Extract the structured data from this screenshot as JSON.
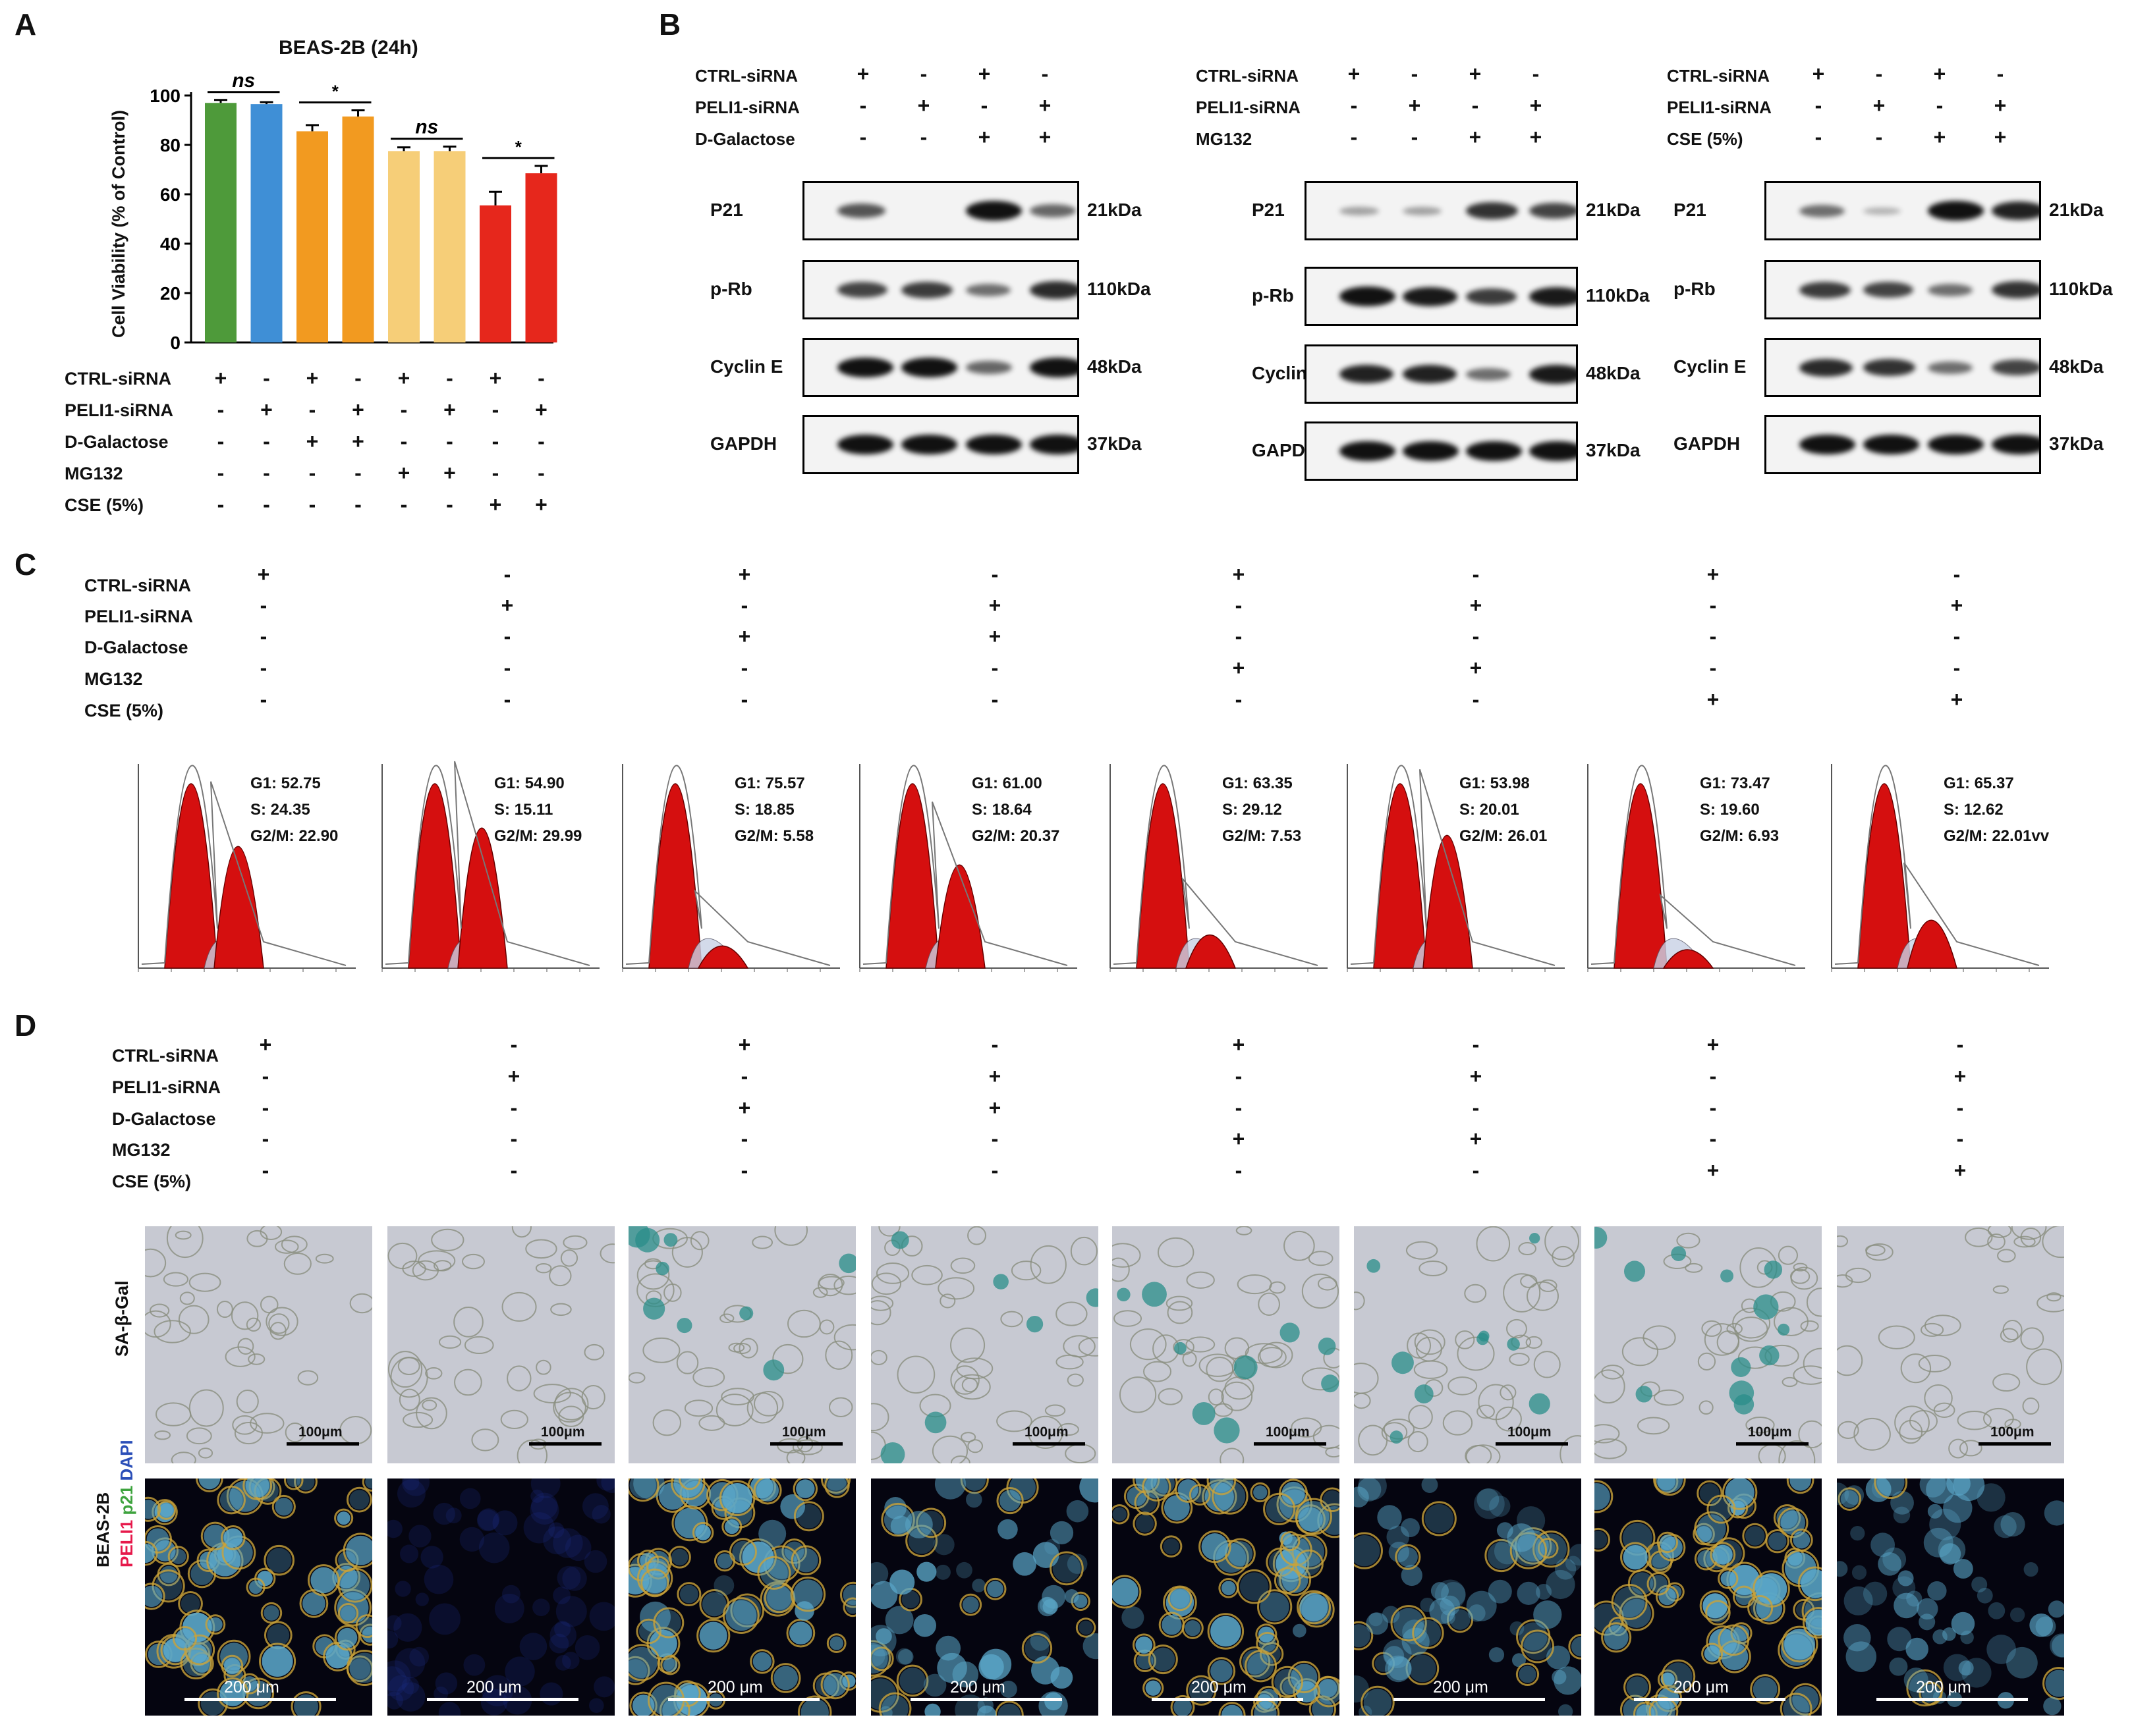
{
  "panel_labels": {
    "A": "A",
    "B": "B",
    "C": "C",
    "D": "D"
  },
  "treatment_rows": [
    "CTRL-siRNA",
    "PELI1-siRNA",
    "D-Galactose",
    "MG132",
    "CSE (5%)"
  ],
  "panelA": {
    "pattern": [
      [
        "+",
        "-",
        "+",
        "-",
        "+",
        "-",
        "+",
        "-"
      ],
      [
        "-",
        "+",
        "-",
        "+",
        "-",
        "+",
        "-",
        "+"
      ],
      [
        "-",
        "-",
        "+",
        "+",
        "-",
        "-",
        "-",
        "-"
      ],
      [
        "-",
        "-",
        "-",
        "-",
        "+",
        "+",
        "-",
        "-"
      ],
      [
        "-",
        "-",
        "-",
        "-",
        "-",
        "-",
        "+",
        "+"
      ]
    ],
    "significance": [
      "ns",
      "*",
      "ns",
      "*"
    ]
  },
  "chart_data": {
    "type": "bar",
    "title": "BEAS-2B (24h)",
    "ylabel": "Cell Viability (% of Control)",
    "ylim": [
      0,
      100
    ],
    "yticks": [
      "0",
      "20",
      "40",
      "60",
      "80",
      "100"
    ],
    "values": [
      97,
      96.5,
      85.5,
      91.5,
      77.5,
      77.5,
      55.5,
      68.5
    ],
    "errors": [
      1.2,
      0.8,
      2.5,
      2.5,
      1.5,
      1.8,
      5.5,
      3
    ],
    "colors": [
      "#4e9a3a",
      "#3f8fd6",
      "#f29a20",
      "#f29a20",
      "#f6ce78",
      "#f6ce78",
      "#e6271c",
      "#e6271c"
    ],
    "legend": "none",
    "grid": false
  },
  "panelB": {
    "blots": [
      {
        "rows": [
          "CTRL-siRNA",
          "PELI1-siRNA",
          "D-Galactose"
        ],
        "pattern": [
          [
            "+",
            "-",
            "+",
            "-"
          ],
          [
            "-",
            "+",
            "-",
            "+"
          ],
          [
            "-",
            "-",
            "+",
            "+"
          ]
        ],
        "bands": [
          [
            0.6,
            0,
            1.0,
            0.5
          ],
          [
            0.7,
            0.75,
            0.45,
            0.85
          ],
          [
            1.0,
            1.0,
            0.5,
            1.0
          ],
          [
            1,
            1,
            1,
            1
          ]
        ]
      },
      {
        "rows": [
          "CTRL-siRNA",
          "PELI1-siRNA",
          "MG132"
        ],
        "pattern": [
          [
            "+",
            "-",
            "+",
            "-"
          ],
          [
            "-",
            "+",
            "-",
            "+"
          ],
          [
            "-",
            "-",
            "+",
            "+"
          ]
        ],
        "bands": [
          [
            0.15,
            0.15,
            0.8,
            0.7
          ],
          [
            1.0,
            0.95,
            0.75,
            0.95
          ],
          [
            0.9,
            0.9,
            0.45,
            0.95
          ],
          [
            1,
            1,
            1,
            1
          ]
        ]
      },
      {
        "rows": [
          "CTRL-siRNA",
          "PELI1-siRNA",
          "CSE (5%)"
        ],
        "pattern": [
          [
            "+",
            "-",
            "+",
            "-"
          ],
          [
            "-",
            "+",
            "-",
            "+"
          ],
          [
            "-",
            "-",
            "+",
            "+"
          ]
        ],
        "bands": [
          [
            0.45,
            0.05,
            1.0,
            0.9
          ],
          [
            0.75,
            0.7,
            0.45,
            0.8
          ],
          [
            0.85,
            0.8,
            0.45,
            0.7
          ],
          [
            1,
            1,
            1,
            1
          ]
        ]
      }
    ],
    "proteins": [
      "P21",
      "p-Rb",
      "Cyclin E",
      "GAPDH"
    ],
    "kda": [
      "21kDa",
      "110kDa",
      "48kDa",
      "37kDa"
    ]
  },
  "panelC": {
    "pattern": [
      [
        "+",
        "-",
        "+",
        "-",
        "+",
        "-",
        "+",
        "-"
      ],
      [
        "-",
        "+",
        "-",
        "+",
        "-",
        "+",
        "-",
        "+"
      ],
      [
        "-",
        "-",
        "+",
        "+",
        "-",
        "-",
        "-",
        "-"
      ],
      [
        "-",
        "-",
        "-",
        "-",
        "+",
        "+",
        "-",
        "-"
      ],
      [
        "-",
        "-",
        "-",
        "-",
        "-",
        "-",
        "+",
        "+"
      ]
    ],
    "histograms": [
      {
        "g1": "G1: 52.75",
        "s": "S: 24.35",
        "g2m": "G2/M: 22.90",
        "h2": 0.33
      },
      {
        "g1": "G1: 54.90",
        "s": "S: 15.11",
        "g2m": "G2/M: 29.99",
        "h2": 0.38
      },
      {
        "g1": "G1: 75.57",
        "s": "S: 18.85",
        "g2m": "G2/M: 5.58",
        "h2": 0.06
      },
      {
        "g1": "G1: 61.00",
        "s": "S: 18.64",
        "g2m": "G2/M: 20.37",
        "h2": 0.28
      },
      {
        "g1": "G1: 63.35",
        "s": "S: 29.12",
        "g2m": "G2/M: 7.53",
        "h2": 0.09
      },
      {
        "g1": "G1: 53.98",
        "s": "S: 20.01",
        "g2m": "G2/M: 26.01",
        "h2": 0.36
      },
      {
        "g1": "G1: 73.47",
        "s": "S: 19.60",
        "g2m": "G2/M: 6.93",
        "h2": 0.05
      },
      {
        "g1": "G1: 65.37",
        "s": "S: 12.62",
        "g2m": "G2/M: 22.01vv",
        "h2": 0.13
      }
    ]
  },
  "panelD": {
    "pattern": [
      [
        "+",
        "-",
        "+",
        "-",
        "+",
        "-",
        "+",
        "-"
      ],
      [
        "-",
        "+",
        "-",
        "+",
        "-",
        "+",
        "-",
        "+"
      ],
      [
        "-",
        "-",
        "+",
        "+",
        "-",
        "-",
        "-",
        "-"
      ],
      [
        "-",
        "-",
        "-",
        "-",
        "+",
        "+",
        "-",
        "-"
      ],
      [
        "-",
        "-",
        "-",
        "-",
        "-",
        "-",
        "+",
        "+"
      ]
    ],
    "row_label_sagal": "SA-β-Gal",
    "row_label_cell": "BEAS-2B",
    "row_label_peli1": "PELI1",
    "row_label_p21": "p21",
    "row_label_dapi": "DAPI",
    "sagal_scale": "100μm",
    "fl_scale": "200 μm",
    "sagal_blue": [
      0,
      0,
      3,
      2,
      3,
      3,
      4,
      0
    ],
    "fl_bright": [
      1,
      0.05,
      1,
      0.8,
      1,
      0.4,
      1,
      0.6
    ],
    "fl_gold": [
      1,
      0,
      0.9,
      0.3,
      0.9,
      0.2,
      1,
      0.15
    ]
  },
  "colors": {
    "sym": "#111111",
    "magenta": "#e6194b",
    "green": "#3ea33e",
    "blue": "#2b4fb8",
    "red": "#cc0000"
  }
}
